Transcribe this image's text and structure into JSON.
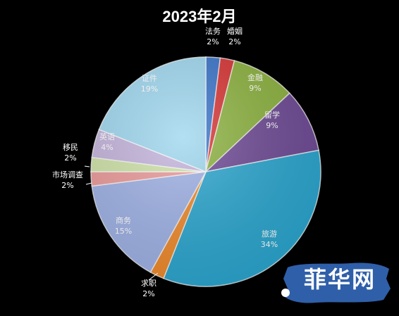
{
  "chart_data": {
    "type": "pie",
    "title": "2023年2月",
    "slices": [
      {
        "label": "法务",
        "value": 2,
        "pct_label": "2%",
        "color": "#3a74c9"
      },
      {
        "label": "婚姻",
        "value": 2,
        "pct_label": "2%",
        "color": "#d83434"
      },
      {
        "label": "金融",
        "value": 9,
        "pct_label": "9%",
        "color": "#8cb23f"
      },
      {
        "label": "留学",
        "value": 9,
        "pct_label": "9%",
        "color": "#6e4a95"
      },
      {
        "label": "旅游",
        "value": 34,
        "pct_label": "34%",
        "color": "#2ba6cf"
      },
      {
        "label": "求职",
        "value": 2,
        "pct_label": "2%",
        "color": "#ef8a2c"
      },
      {
        "label": "商务",
        "value": 15,
        "pct_label": "15%",
        "color": "#9fb2e6"
      },
      {
        "label": "市场调查",
        "value": 2,
        "pct_label": "2%",
        "color": "#ec9a9a"
      },
      {
        "label": "移民",
        "value": 2,
        "pct_label": "2%",
        "color": "#cfe3a8"
      },
      {
        "label": "英语",
        "value": 4,
        "pct_label": "4%",
        "color": "#c4b4dc"
      },
      {
        "label": "证件",
        "value": 19,
        "pct_label": "19%",
        "color": "#9fd7ef"
      }
    ]
  },
  "watermark": {
    "text": "菲华网",
    "color": "#2f5fa8"
  }
}
